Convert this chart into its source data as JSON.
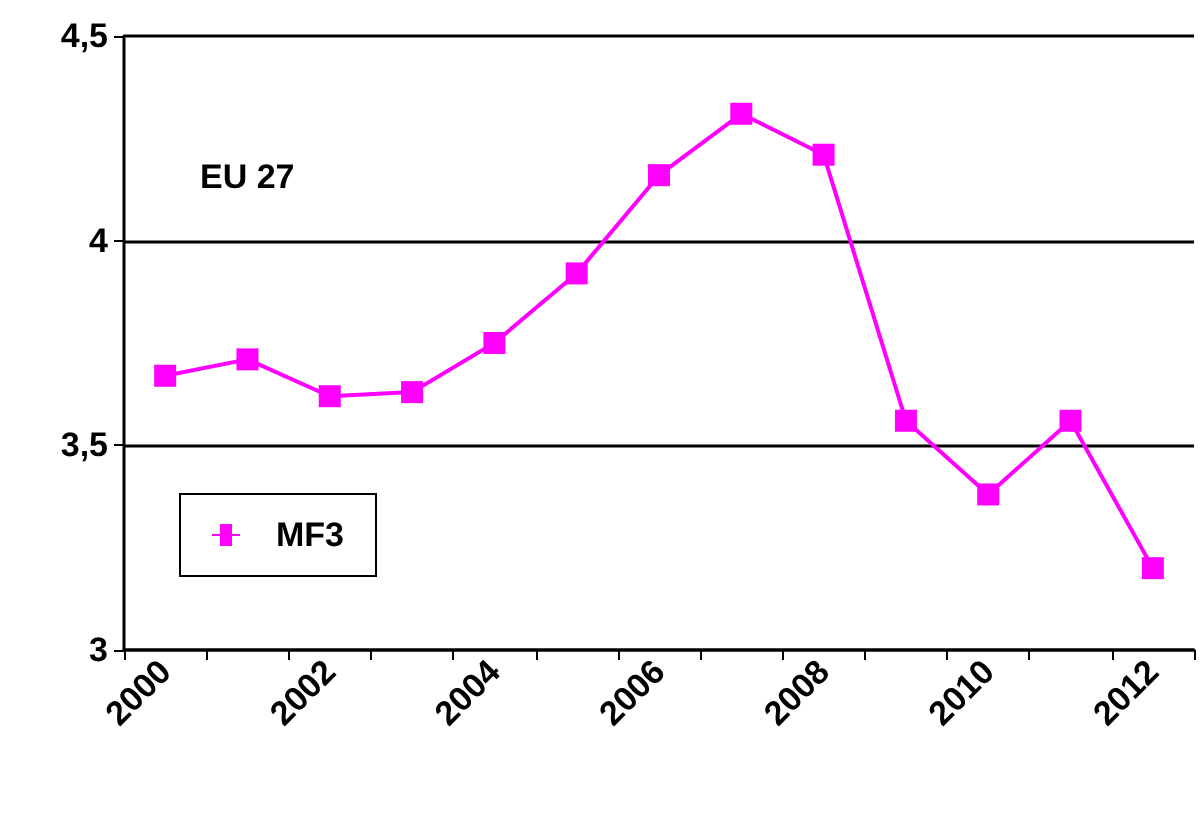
{
  "chart_data": {
    "type": "line",
    "categories": [
      "2000",
      null,
      "2002",
      null,
      "2004",
      null,
      "2006",
      null,
      "2008",
      null,
      "2010",
      null,
      "2012"
    ],
    "series": [
      {
        "name": "MF3",
        "color": "#ff00ff",
        "values": [
          3.67,
          3.71,
          3.62,
          3.63,
          3.75,
          3.92,
          4.16,
          4.31,
          4.21,
          3.56,
          3.38,
          3.56,
          3.2
        ]
      }
    ],
    "ylim": [
      3,
      4.5
    ],
    "yticks": [
      {
        "value": 3,
        "label": "3"
      },
      {
        "value": 3.5,
        "label": "3,5"
      },
      {
        "value": 4,
        "label": "4"
      },
      {
        "value": 4.5,
        "label": "4,5"
      }
    ],
    "grid": "y",
    "legend": "bottom left",
    "marker": "square",
    "line_style": "solid",
    "annotations": [
      "EU 27"
    ]
  }
}
